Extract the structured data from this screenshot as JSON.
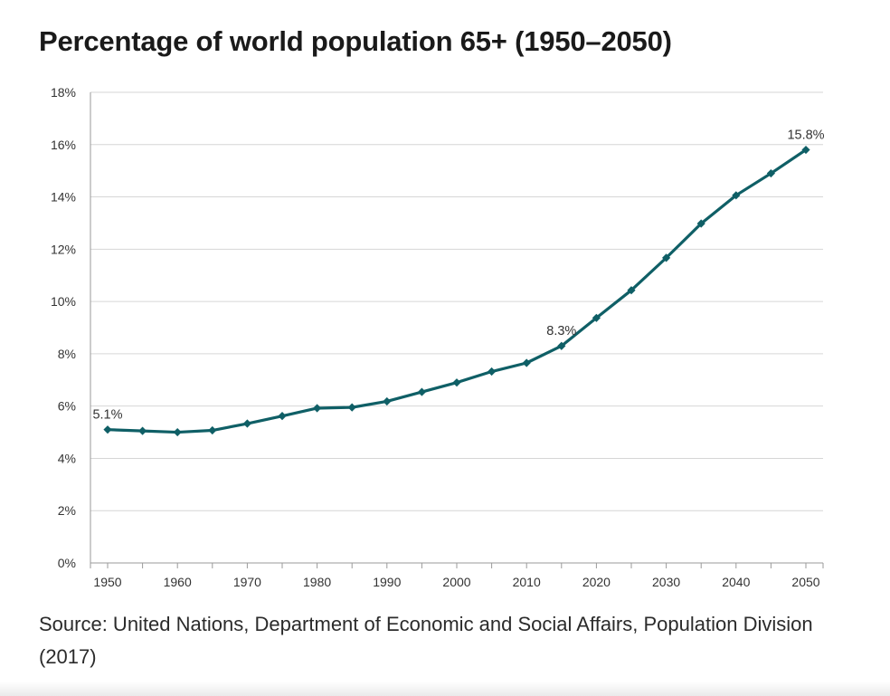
{
  "chart_data": {
    "type": "line",
    "title": "Percentage of world population 65+ (1950–2050)",
    "xlabel": "",
    "ylabel": "",
    "x_ticks": [
      "1950",
      "1960",
      "1970",
      "1980",
      "1990",
      "2000",
      "2010",
      "2020",
      "2030",
      "2040",
      "2050"
    ],
    "y_ticks": [
      "0%",
      "2%",
      "4%",
      "6%",
      "8%",
      "10%",
      "12%",
      "14%",
      "16%",
      "18%"
    ],
    "ylim": [
      0,
      18
    ],
    "xlim": [
      1950,
      2050
    ],
    "grid": true,
    "series": [
      {
        "name": "Population 65+",
        "color": "#0f5f66",
        "x": [
          1950,
          1955,
          1960,
          1965,
          1970,
          1975,
          1980,
          1985,
          1990,
          1995,
          2000,
          2005,
          2010,
          2015,
          2020,
          2025,
          2030,
          2035,
          2040,
          2045,
          2050
        ],
        "values": [
          5.1,
          5.05,
          5.0,
          5.07,
          5.33,
          5.62,
          5.92,
          5.95,
          6.18,
          6.54,
          6.9,
          7.32,
          7.65,
          8.3,
          9.37,
          10.43,
          11.67,
          12.98,
          14.06,
          14.9,
          15.8
        ]
      }
    ],
    "annotations": [
      {
        "x": 1950,
        "text": "5.1%"
      },
      {
        "x": 2015,
        "text": "8.3%"
      },
      {
        "x": 2050,
        "text": "15.8%"
      }
    ]
  },
  "source": "Source: United Nations, Department of Economic and Social Affairs, Population Division (2017)"
}
